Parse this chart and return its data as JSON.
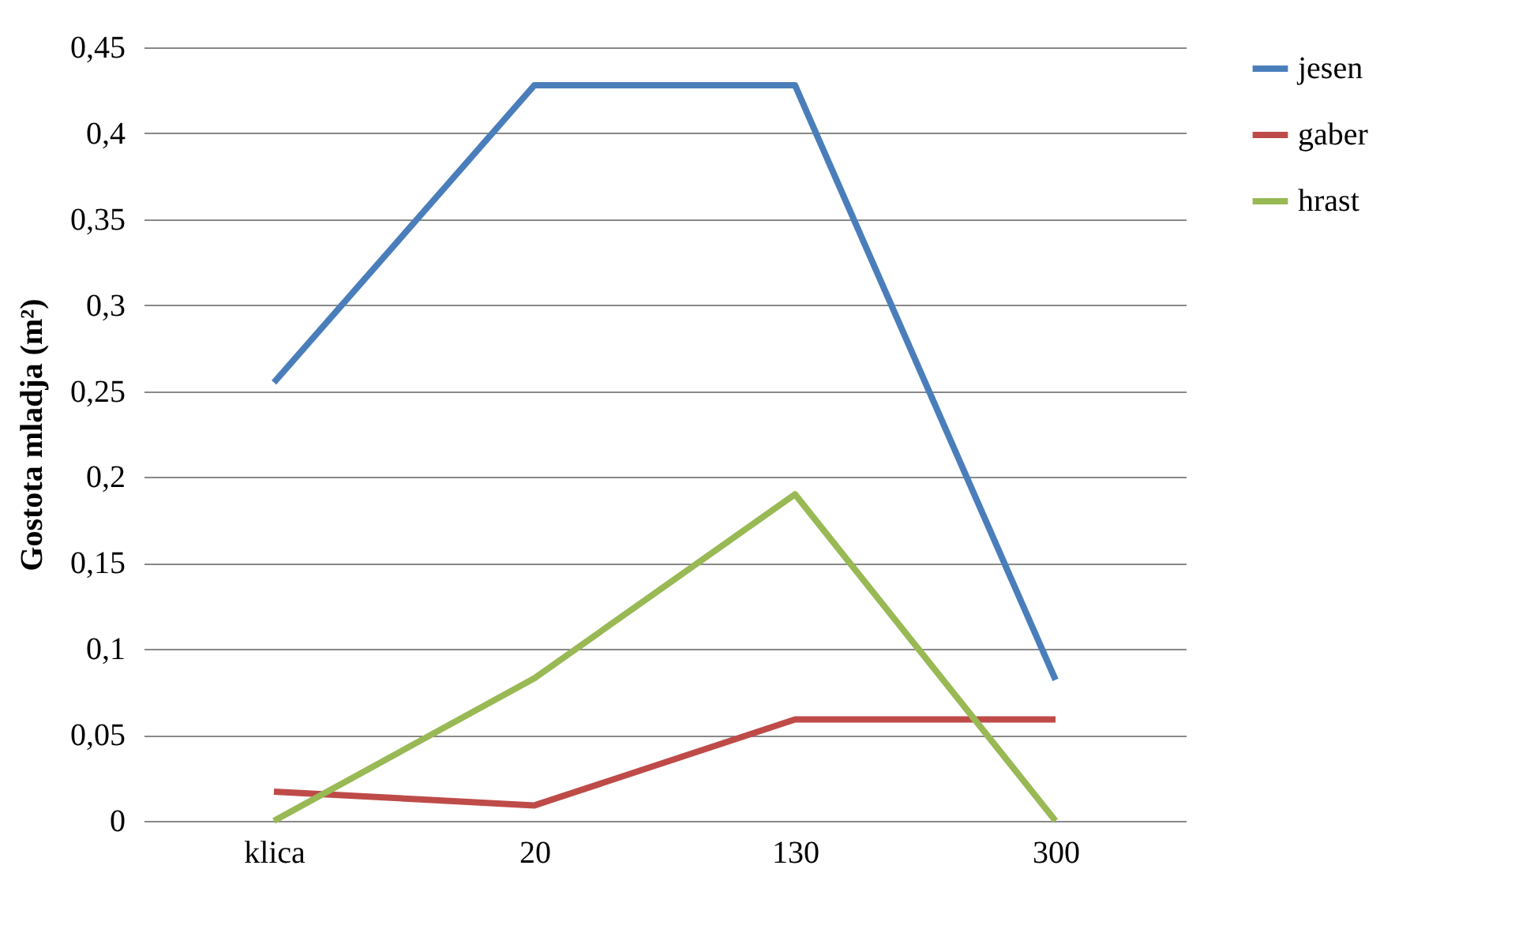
{
  "chart_data": {
    "type": "line",
    "ylabel": "Gostota mladja (m²)",
    "categories": [
      "klica",
      "20",
      "130",
      "300"
    ],
    "series": [
      {
        "name": "jesen",
        "color": "#4a7ebb",
        "values": [
          0.255,
          0.428,
          0.428,
          0.082
        ]
      },
      {
        "name": "gaber",
        "color": "#be4b48",
        "values": [
          0.017,
          0.009,
          0.059,
          0.059
        ]
      },
      {
        "name": "hrast",
        "color": "#98b954",
        "values": [
          0,
          0.083,
          0.19,
          0
        ]
      }
    ],
    "ylim": [
      0,
      0.45
    ],
    "yticks": [
      {
        "value": 0,
        "label": "0"
      },
      {
        "value": 0.05,
        "label": "0,05"
      },
      {
        "value": 0.1,
        "label": "0,1"
      },
      {
        "value": 0.15,
        "label": "0,15"
      },
      {
        "value": 0.2,
        "label": "0,2"
      },
      {
        "value": 0.25,
        "label": "0,25"
      },
      {
        "value": 0.3,
        "label": "0,3"
      },
      {
        "value": 0.35,
        "label": "0,35"
      },
      {
        "value": 0.4,
        "label": "0,4"
      },
      {
        "value": 0.45,
        "label": "0,45"
      }
    ],
    "grid": "y",
    "legend": "right",
    "marker": "none",
    "line_style": "solid"
  }
}
